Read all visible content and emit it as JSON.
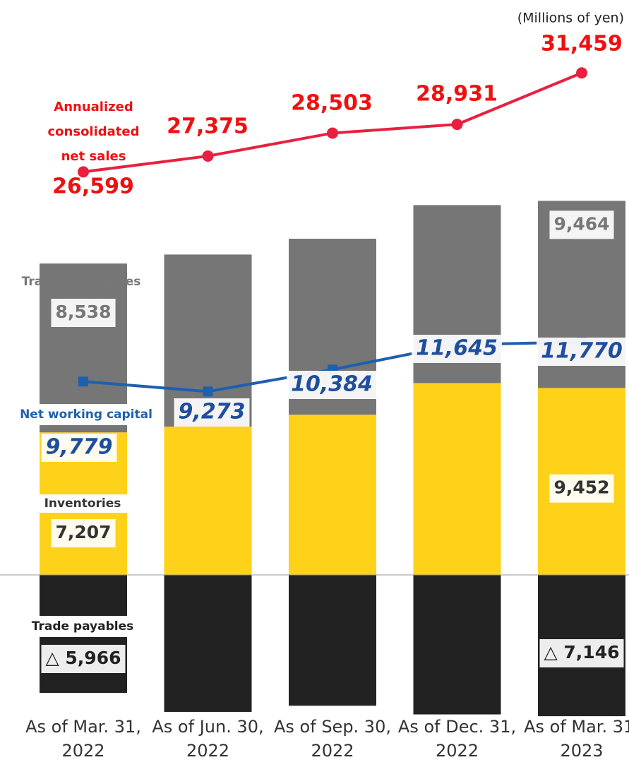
{
  "chart_data": {
    "type": "bar",
    "stacked": true,
    "unit_note": "(Millions of yen)",
    "categories": [
      "As of Mar. 31, 2022",
      "As of Jun. 30, 2022",
      "As of Sep. 30, 2022",
      "As of Dec. 31, 2022",
      "As of Mar. 31, 2023"
    ],
    "ylim": [
      -7000,
      28000
    ],
    "y2lim": [
      0,
      34000
    ],
    "series": [
      {
        "name": "Inventories",
        "color": "#FFD21A",
        "values": [
          7207,
          7500,
          8100,
          9700,
          9452
        ],
        "value_labels": [
          "7,207",
          null,
          null,
          null,
          "9,452"
        ]
      },
      {
        "name": "Trade receivables",
        "color": "#767676",
        "values": [
          8538,
          8700,
          8900,
          9000,
          9464
        ],
        "value_labels": [
          "8,538",
          null,
          null,
          null,
          "9,464"
        ]
      },
      {
        "name": "Trade payables",
        "color": "#222222",
        "values": [
          -5966,
          -6927,
          -6616,
          -7055,
          -7146
        ],
        "value_labels": [
          "△ 5,966",
          null,
          null,
          null,
          "△ 7,146"
        ]
      },
      {
        "name": "Net working capital",
        "type": "line",
        "color": "#1F5FAD",
        "values": [
          9779,
          9273,
          10384,
          11645,
          11770
        ],
        "value_labels": [
          "9,779",
          "9,273",
          "10,384",
          "11,645",
          "11,770"
        ]
      },
      {
        "name": "Annualized consolidated net sales",
        "type": "line",
        "axis": "y2",
        "color": "#E8203F",
        "values": [
          26599,
          27375,
          28503,
          28931,
          31459
        ],
        "value_labels": [
          "26,599",
          "27,375",
          "28,503",
          "28,931",
          "31,459"
        ]
      }
    ]
  }
}
